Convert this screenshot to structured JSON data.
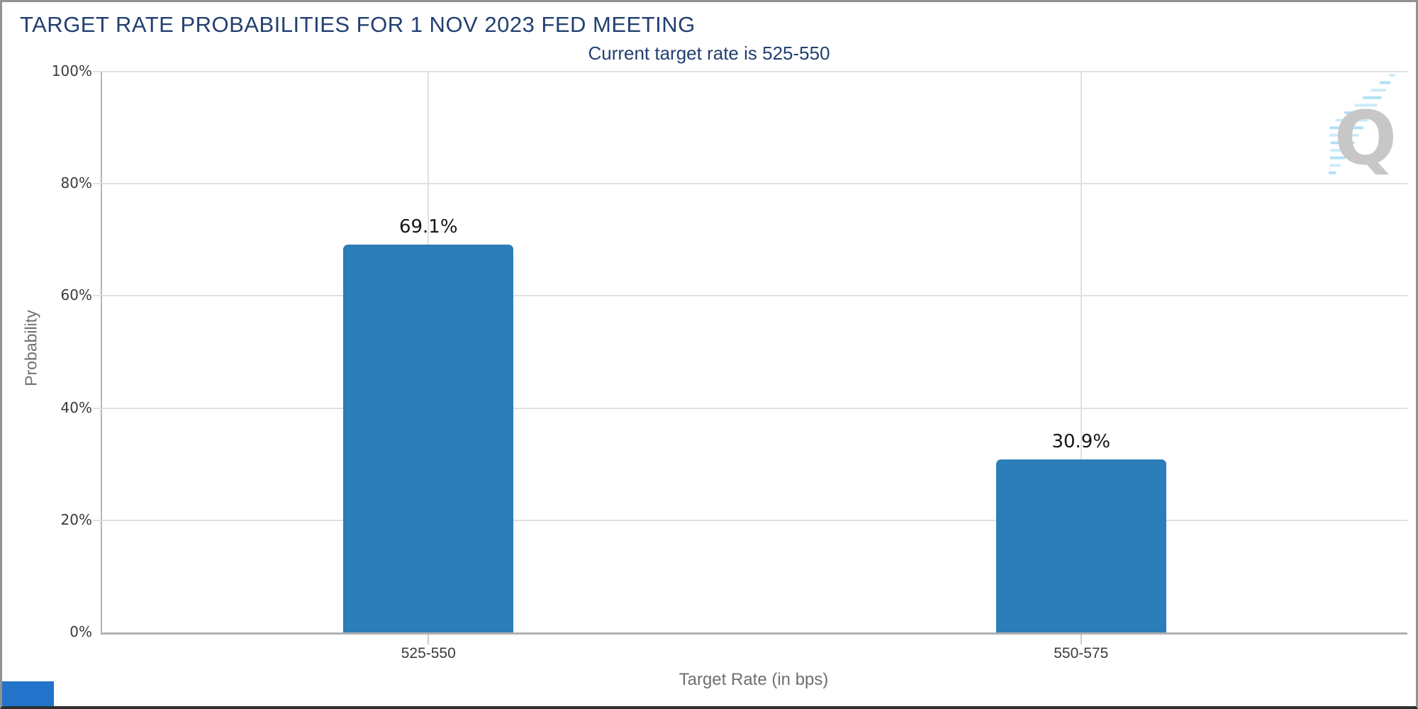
{
  "chart_data": {
    "type": "bar",
    "title": "TARGET RATE PROBABILITIES FOR 1 NOV 2023 FED MEETING",
    "subtitle": "Current target rate is 525-550",
    "categories": [
      "525-550",
      "550-575"
    ],
    "values": [
      69.1,
      30.9
    ],
    "value_labels": [
      "69.1%",
      "30.9%"
    ],
    "xlabel": "Target Rate (in bps)",
    "ylabel": "Probability",
    "ylim": [
      0,
      100
    ],
    "yticks": [
      "0%",
      "20%",
      "40%",
      "60%",
      "80%",
      "100%"
    ],
    "ytick_step": 20,
    "grid": true,
    "legend_position": "none",
    "bar_color": "#2b7eb8"
  },
  "colors": {
    "title_navy": "#234071",
    "bar_blue": "#2b7eb8",
    "axis_gray": "#b0b0b0",
    "gridline_gray": "#e0e0e0",
    "tick_label_gray": "#3b3b3b",
    "axis_title_gray": "#6f6f6f",
    "watermark_gray": "#c7c7c7",
    "watermark_blue": "#a8ddf5",
    "corner_box_blue": "#2273c9"
  },
  "watermark": {
    "icon": "quikstrike-q-logo",
    "letter": "Q"
  }
}
